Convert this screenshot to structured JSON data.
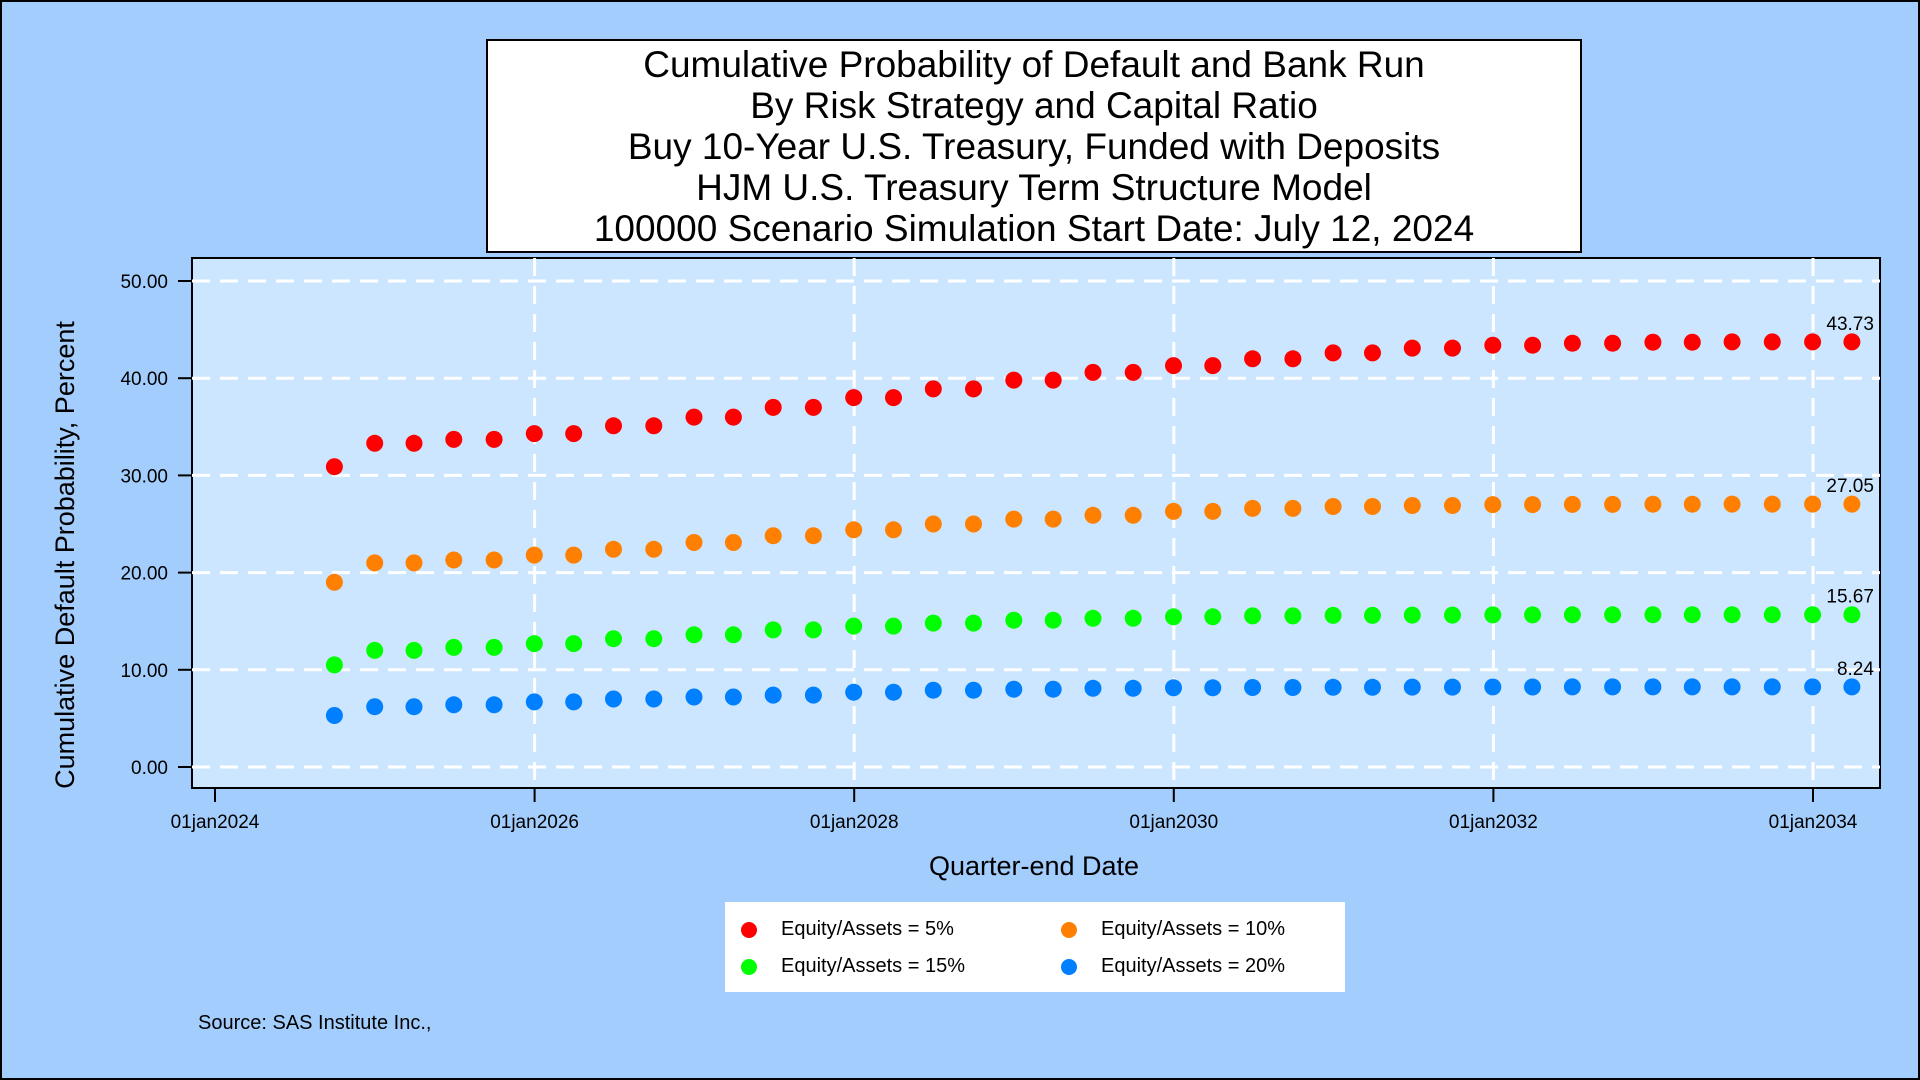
{
  "chart_data": {
    "type": "scatter",
    "title_lines": [
      "Cumulative Probability of Default and Bank Run",
      "By Risk Strategy and Capital Ratio",
      "Buy 10-Year U.S. Treasury, Funded with Deposits",
      "HJM U.S. Treasury Term Structure Model",
      "100000 Scenario Simulation Start Date: July 12, 2024"
    ],
    "xlabel": "Quarter-end Date",
    "ylabel": "Cumulative Default Probability, Percent",
    "x_ticks": [
      "01jan2024",
      "01jan2026",
      "01jan2028",
      "01jan2030",
      "01jan2032",
      "01jan2034"
    ],
    "y_ticks": [
      "0.00",
      "10.00",
      "20.00",
      "30.00",
      "40.00",
      "50.00"
    ],
    "ylim": [
      0,
      50
    ],
    "xlim": [
      "2024-01-01",
      "2034-04-01"
    ],
    "grid": true,
    "legend_position": "bottom",
    "x": [
      "2024-09-30",
      "2024-12-31",
      "2025-03-31",
      "2025-06-30",
      "2025-09-30",
      "2025-12-31",
      "2026-03-31",
      "2026-06-30",
      "2026-09-30",
      "2026-12-31",
      "2027-03-31",
      "2027-06-30",
      "2027-09-30",
      "2027-12-31",
      "2028-03-31",
      "2028-06-30",
      "2028-09-30",
      "2028-12-31",
      "2029-03-31",
      "2029-06-30",
      "2029-09-30",
      "2029-12-31",
      "2030-03-31",
      "2030-06-30",
      "2030-09-30",
      "2030-12-31",
      "2031-03-31",
      "2031-06-30",
      "2031-09-30",
      "2031-12-31",
      "2032-03-31",
      "2032-06-30",
      "2032-09-30",
      "2032-12-31",
      "2033-03-31",
      "2033-06-30",
      "2033-09-30",
      "2033-12-31",
      "2034-03-31"
    ],
    "series": [
      {
        "name": "Equity/Assets = 5%",
        "color": "#ff0000",
        "end_label": "43.73",
        "values": [
          30.9,
          33.3,
          33.3,
          33.7,
          33.7,
          34.3,
          34.3,
          35.1,
          35.1,
          36.0,
          36.0,
          37.0,
          37.0,
          38.0,
          38.0,
          38.9,
          38.9,
          39.8,
          39.8,
          40.6,
          40.6,
          41.3,
          41.3,
          42.0,
          42.0,
          42.6,
          42.6,
          43.1,
          43.1,
          43.4,
          43.4,
          43.6,
          43.6,
          43.7,
          43.7,
          43.73,
          43.73,
          43.73,
          43.73
        ]
      },
      {
        "name": "Equity/Assets = 10%",
        "color": "#ff8000",
        "end_label": "27.05",
        "values": [
          19.0,
          21.0,
          21.0,
          21.3,
          21.3,
          21.8,
          21.8,
          22.4,
          22.4,
          23.1,
          23.1,
          23.8,
          23.8,
          24.4,
          24.4,
          25.0,
          25.0,
          25.5,
          25.5,
          25.9,
          25.9,
          26.3,
          26.3,
          26.6,
          26.6,
          26.8,
          26.8,
          26.9,
          26.9,
          27.0,
          27.0,
          27.02,
          27.02,
          27.04,
          27.04,
          27.05,
          27.05,
          27.05,
          27.05
        ]
      },
      {
        "name": "Equity/Assets = 15%",
        "color": "#00ff00",
        "end_label": "15.67",
        "values": [
          10.5,
          12.0,
          12.0,
          12.3,
          12.3,
          12.7,
          12.7,
          13.2,
          13.2,
          13.6,
          13.6,
          14.1,
          14.1,
          14.5,
          14.5,
          14.8,
          14.8,
          15.1,
          15.1,
          15.3,
          15.3,
          15.45,
          15.45,
          15.55,
          15.55,
          15.6,
          15.6,
          15.63,
          15.63,
          15.65,
          15.65,
          15.66,
          15.66,
          15.67,
          15.67,
          15.67,
          15.67,
          15.67,
          15.67
        ]
      },
      {
        "name": "Equity/Assets = 20%",
        "color": "#0080ff",
        "end_label": "8.24",
        "values": [
          5.3,
          6.2,
          6.2,
          6.4,
          6.4,
          6.7,
          6.7,
          7.0,
          7.0,
          7.2,
          7.2,
          7.4,
          7.4,
          7.7,
          7.7,
          7.9,
          7.9,
          8.0,
          8.0,
          8.1,
          8.1,
          8.15,
          8.15,
          8.18,
          8.18,
          8.2,
          8.2,
          8.22,
          8.22,
          8.23,
          8.23,
          8.24,
          8.24,
          8.24,
          8.24,
          8.24,
          8.24,
          8.24,
          8.24
        ]
      }
    ]
  },
  "source": "Source: SAS Institute Inc.,",
  "colors": {
    "background": "#a3cdfd",
    "plot_area": "#cce6ff",
    "grid": "#ffffff"
  }
}
